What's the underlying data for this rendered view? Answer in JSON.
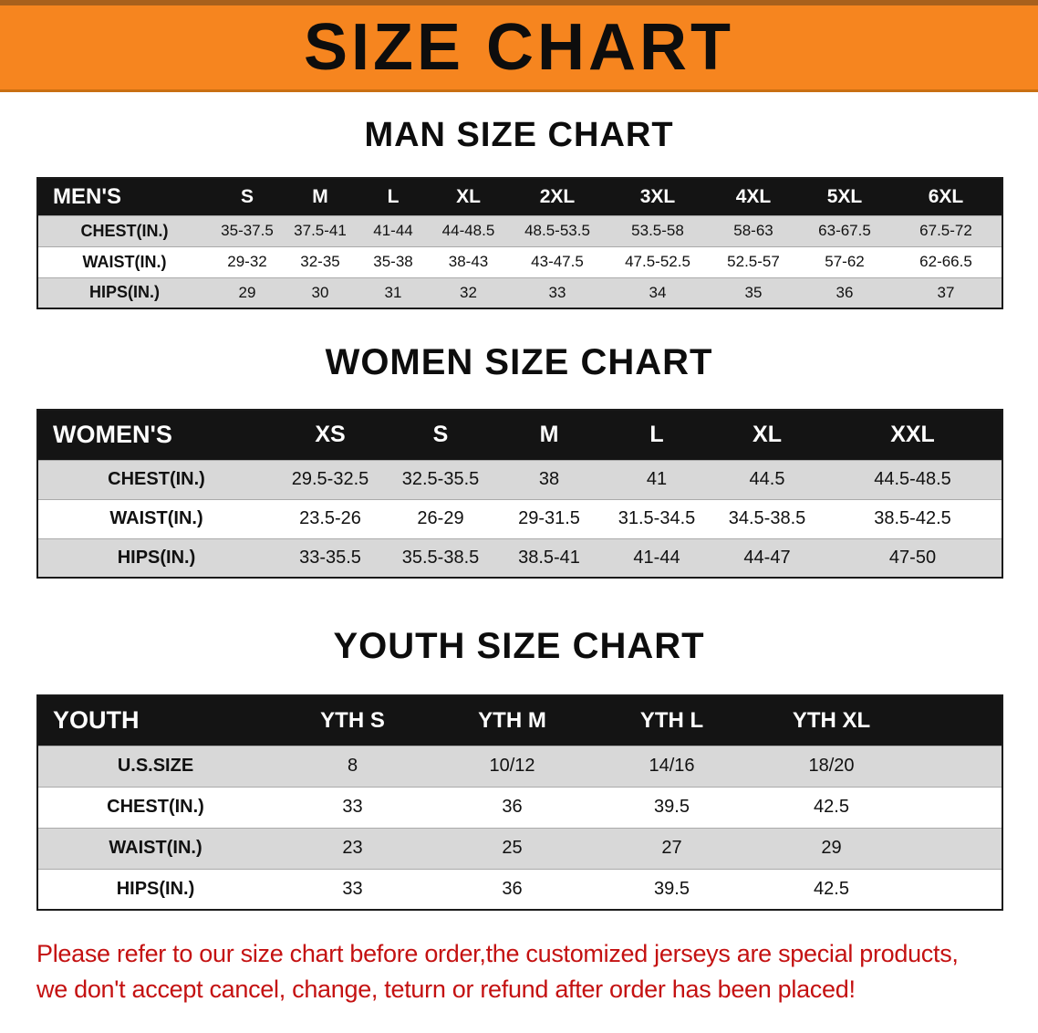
{
  "banner": {
    "title": "SIZE CHART"
  },
  "sections": [
    {
      "heading": "MAN SIZE CHART",
      "table": {
        "header": [
          "MEN'S",
          "S",
          "M",
          "L",
          "XL",
          "2XL",
          "3XL",
          "4XL",
          "5XL",
          "6XL"
        ],
        "rows": [
          [
            "CHEST(IN.)",
            "35-37.5",
            "37.5-41",
            "41-44",
            "44-48.5",
            "48.5-53.5",
            "53.5-58",
            "58-63",
            "63-67.5",
            "67.5-72"
          ],
          [
            "WAIST(IN.)",
            "29-32",
            "32-35",
            "35-38",
            "38-43",
            "43-47.5",
            "47.5-52.5",
            "52.5-57",
            "57-62",
            "62-66.5"
          ],
          [
            "HIPS(IN.)",
            "29",
            "30",
            "31",
            "32",
            "33",
            "34",
            "35",
            "36",
            "37"
          ]
        ]
      }
    },
    {
      "heading": "WOMEN SIZE CHART",
      "table": {
        "header": [
          "WOMEN'S",
          "XS",
          "S",
          "M",
          "L",
          "XL",
          "XXL"
        ],
        "rows": [
          [
            "CHEST(IN.)",
            "29.5-32.5",
            "32.5-35.5",
            "38",
            "41",
            "44.5",
            "44.5-48.5"
          ],
          [
            "WAIST(IN.)",
            "23.5-26",
            "26-29",
            "29-31.5",
            "31.5-34.5",
            "34.5-38.5",
            "38.5-42.5"
          ],
          [
            "HIPS(IN.)",
            "33-35.5",
            "35.5-38.5",
            "38.5-41",
            "41-44",
            "44-47",
            "47-50"
          ]
        ]
      }
    },
    {
      "heading": "YOUTH SIZE CHART",
      "table": {
        "header": [
          "YOUTH",
          "YTH S",
          "YTH M",
          "YTH L",
          "YTH XL"
        ],
        "rows": [
          [
            "U.S.SIZE",
            "8",
            "10/12",
            "14/16",
            "18/20"
          ],
          [
            "CHEST(IN.)",
            "33",
            "36",
            "39.5",
            "42.5"
          ],
          [
            "WAIST(IN.)",
            "23",
            "25",
            "27",
            "29"
          ],
          [
            "HIPS(IN.)",
            "33",
            "36",
            "39.5",
            "42.5"
          ]
        ]
      }
    }
  ],
  "disclaimer": {
    "line1": "Please refer to our size chart before order,the customized jerseys are special products,",
    "line2": "we don't accept cancel, change, teturn or refund after order has been placed!"
  },
  "colors": {
    "banner_bg": "#f6851f",
    "table_header_bg": "#141414",
    "row_stripe": "#d8d8d8",
    "disclaimer_text": "#c41111"
  }
}
